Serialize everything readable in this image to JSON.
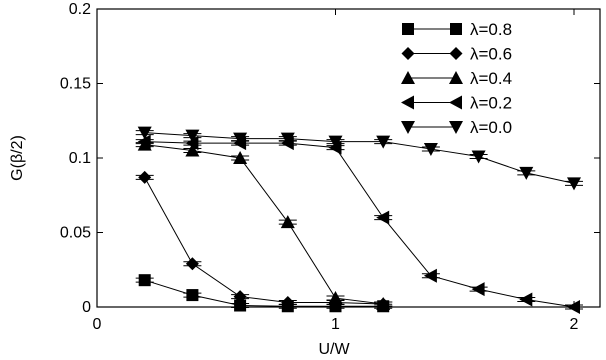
{
  "chart_data": {
    "type": "line",
    "xlabel": "U/W",
    "ylabel": "G(β/2)",
    "xlim": [
      0,
      2.05
    ],
    "ylim": [
      0,
      0.2
    ],
    "xticks": [
      0,
      1,
      2
    ],
    "xtick_labels": [
      "0",
      "1",
      "2"
    ],
    "yticks": [
      0,
      0.05,
      0.1,
      0.15,
      0.2
    ],
    "ytick_labels": [
      "0",
      "0.05",
      "0.1",
      "0.15",
      "0.2"
    ],
    "grid": false,
    "legend_position": "top-right",
    "series": [
      {
        "name": "λ=0.8",
        "marker": "square",
        "x": [
          0.2,
          0.4,
          0.6,
          0.8,
          1.0,
          1.2
        ],
        "y": [
          0.018,
          0.008,
          0.001,
          0.0005,
          0.0005,
          0.0005
        ]
      },
      {
        "name": "λ=0.6",
        "marker": "diamond",
        "x": [
          0.2,
          0.4,
          0.6,
          0.8,
          1.0,
          1.2
        ],
        "y": [
          0.087,
          0.029,
          0.007,
          0.003,
          0.003,
          0.002
        ]
      },
      {
        "name": "λ=0.4",
        "marker": "triangle-up",
        "x": [
          0.2,
          0.4,
          0.6,
          0.8,
          1.0,
          1.2
        ],
        "y": [
          0.109,
          0.105,
          0.1,
          0.057,
          0.006,
          0.002
        ]
      },
      {
        "name": "λ=0.2",
        "marker": "triangle-left",
        "x": [
          0.2,
          0.4,
          0.6,
          0.8,
          1.0,
          1.2,
          1.4,
          1.6,
          1.8,
          2.0
        ],
        "y": [
          0.111,
          0.11,
          0.11,
          0.11,
          0.107,
          0.06,
          0.021,
          0.012,
          0.005,
          0.0
        ]
      },
      {
        "name": "λ=0.0",
        "marker": "triangle-down",
        "x": [
          0.2,
          0.4,
          0.6,
          0.8,
          1.0,
          1.2,
          1.4,
          1.6,
          1.8,
          2.0
        ],
        "y": [
          0.117,
          0.115,
          0.113,
          0.113,
          0.111,
          0.111,
          0.106,
          0.101,
          0.09,
          0.083
        ]
      }
    ]
  }
}
